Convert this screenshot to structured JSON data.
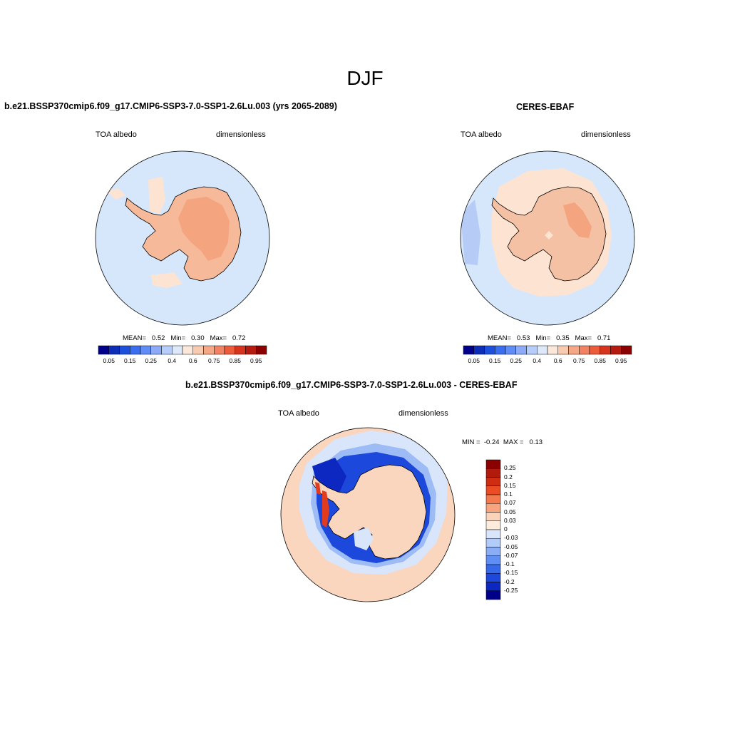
{
  "page": {
    "season": "DJF"
  },
  "panels": [
    {
      "title": "b.e21.BSSP370cmip6.f09_g17.CMIP6-SSP3-7.0-SSP1-2.6Lu.003 (yrs 2065-2089)",
      "variable": "TOA albedo",
      "units": "dimensionless",
      "stats": {
        "mean_label": "MEAN=",
        "mean": "0.52",
        "min_label": "Min=",
        "min": "0.30",
        "max_label": "Max=",
        "max": "0.72"
      }
    },
    {
      "title": "CERES-EBAF",
      "variable": "TOA albedo",
      "units": "dimensionless",
      "stats": {
        "mean_label": "MEAN=",
        "mean": "0.53",
        "min_label": "Min=",
        "min": "0.35",
        "max_label": "Max=",
        "max": "0.71"
      }
    },
    {
      "title": "b.e21.BSSP370cmip6.f09_g17.CMIP6-SSP3-7.0-SSP1-2.6Lu.003 - CERES-EBAF",
      "variable": "TOA albedo",
      "units": "dimensionless",
      "stats": {
        "min_label": "MIN =",
        "min": "-0.24",
        "max_label": "MAX =",
        "max": "0.13"
      }
    }
  ],
  "colorbars": {
    "absolute": {
      "colors": [
        "#00008b",
        "#0a2fb6",
        "#1c4fdb",
        "#3a6ef0",
        "#5f8cf5",
        "#8caaf8",
        "#b6ccfa",
        "#dde9fb",
        "#fbe8da",
        "#f8cbb0",
        "#f5a786",
        "#f18362",
        "#ec5b3a",
        "#d6341c",
        "#b51b0e",
        "#8b0000"
      ],
      "tick_labels": [
        "0.05",
        "0.15",
        "0.25",
        "0.4",
        "0.6",
        "0.75",
        "0.85",
        "0.95"
      ]
    },
    "difference": {
      "colors": [
        "#8b0000",
        "#b21a0c",
        "#cf2d12",
        "#ea4c24",
        "#f47a4e",
        "#f8a57f",
        "#fbd3b8",
        "#fdebdc",
        "#d8e5fb",
        "#b2cbf8",
        "#8aaef5",
        "#5f8ff2",
        "#3669ea",
        "#1d48dc",
        "#0d28c0",
        "#00008b"
      ],
      "tick_labels": [
        "0.25",
        "0.2",
        "0.15",
        "0.1",
        "0.07",
        "0.05",
        "0.03",
        "0",
        "-0.03",
        "-0.05",
        "-0.07",
        "-0.1",
        "-0.15",
        "-0.2",
        "-0.25"
      ]
    }
  },
  "map_colors": {
    "ocean_model": "#d6e7fb",
    "ocean_obs": "#d6e7fb",
    "ocean_obs_darker": "#b6ccf7",
    "continent": "#f6ba9b",
    "continent_obs": "#f5c1a4",
    "sea_ice_cream": "#fde4d2",
    "interior_high": "#f4a47e",
    "diff_positive": "#fbd6bf",
    "diff_weak_negative": "#d8e5fb",
    "diff_moderate_negative": "#9dbcf6",
    "diff_strong_negative": "#1d48dc",
    "diff_very_negative": "#0d28c0",
    "diff_red": "#e23b1d",
    "coastline": "#000000"
  }
}
